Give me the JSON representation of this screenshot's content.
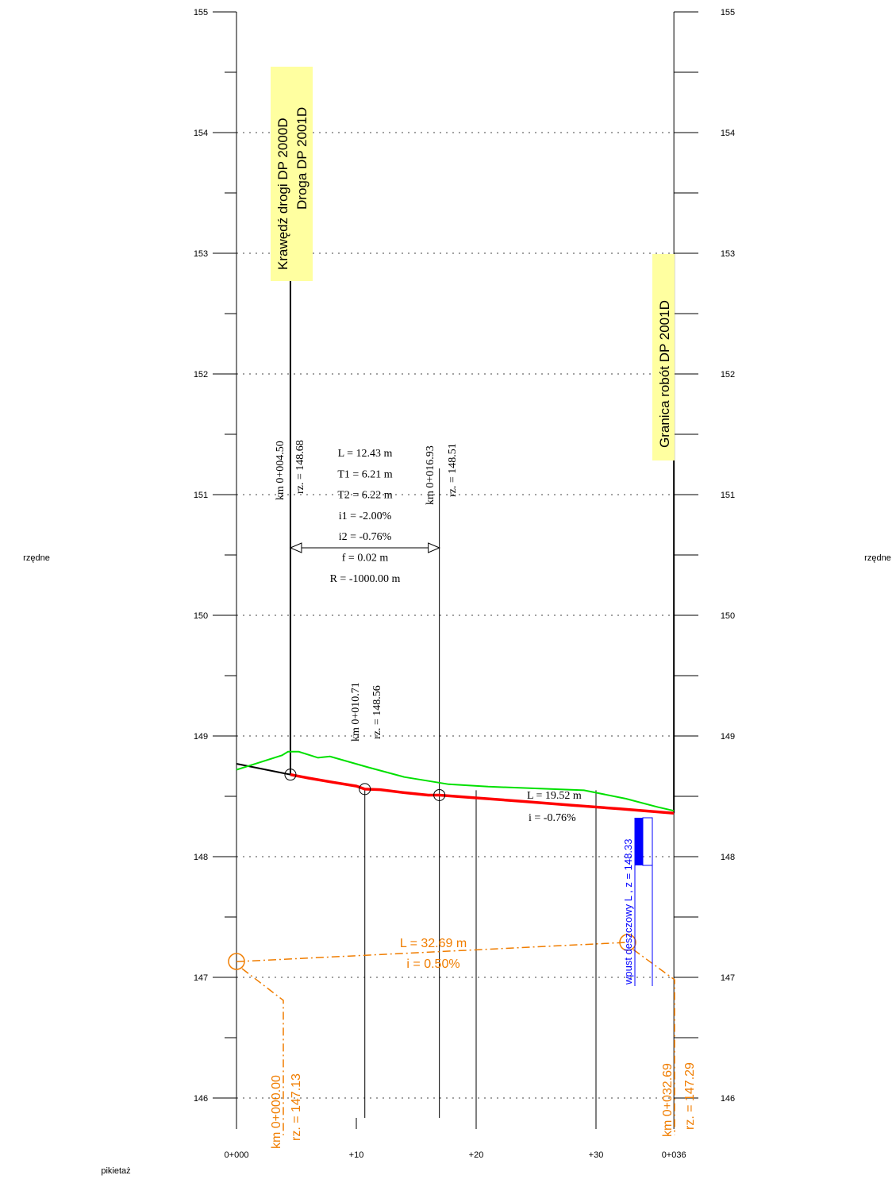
{
  "axis": {
    "side_label": "rzędne",
    "bottom_label": "pikietaż",
    "y_ticks": [
      "146",
      "147",
      "148",
      "149",
      "150",
      "151",
      "152",
      "153",
      "154",
      "155"
    ],
    "x_ticks": [
      {
        "label": "0+000",
        "x": 0
      },
      {
        "label": "+10",
        "x": 10
      },
      {
        "label": "+20",
        "x": 20
      },
      {
        "label": "+30",
        "x": 30
      },
      {
        "label": "0+036",
        "x": 36.5
      }
    ]
  },
  "markers": {
    "left_1": "Krawędź drogi DP 2000D",
    "left_2": "Droga DP 2001D",
    "right": "Granica robót DP 2001D"
  },
  "road": {
    "p1_km": "km 0+004.50",
    "p1_rz": "rz. = 148.68",
    "p2_km": "km 0+016.93",
    "p2_rz": "rz. = 148.51",
    "p3_km": "km 0+010.71",
    "p3_rz": "rz. = 148.56",
    "curve": [
      "L = 12.43 m",
      "T1 = 6.21 m",
      "T2 = 6.22 m",
      "i1 = -2.00%",
      "i2 = -0.76%",
      "f = 0.02 m",
      "R = -1000.00 m"
    ],
    "grade_L": "L = 19.52 m",
    "grade_i": "i = -0.76%"
  },
  "pipe": {
    "L": "L = 32.69 m",
    "i": "i = 0.50%",
    "start_km": "km 0+000.00",
    "start_rz": "rz. = 147.13",
    "end_km": "km 0+032.69",
    "end_rz": "rz. = 147.29"
  },
  "inlet": {
    "label": "wpust deszczowy L ,  z = 148.33"
  },
  "chart_data": {
    "type": "line",
    "xlabel": "pikietaż",
    "ylabel": "rzędne",
    "xlim": [
      0,
      36.5
    ],
    "ylim": [
      145.8,
      155.2
    ],
    "grid": true,
    "series": [
      {
        "color": "#ff0000",
        "x": [
          4.5,
          6,
          8,
          10,
          10.71,
          12,
          14,
          16,
          16.93,
          20,
          24,
          28,
          32,
          36.5
        ],
        "y": [
          148.68,
          148.651,
          148.617,
          148.585,
          148.56,
          148.555,
          148.53,
          148.51,
          148.51,
          148.487,
          148.457,
          148.426,
          148.396,
          148.36
        ]
      },
      {
        "color": "#000000",
        "x": [
          0,
          4.5
        ],
        "y": [
          148.77,
          148.68
        ]
      },
      {
        "color": "#00e000",
        "x": [
          0,
          3.8,
          4.3,
          5.2,
          6.8,
          7.8,
          11,
          14,
          17.7,
          21,
          29,
          32.5,
          35.2,
          36.5
        ],
        "y": [
          148.72,
          148.84,
          148.87,
          148.87,
          148.82,
          148.83,
          148.74,
          148.66,
          148.6,
          148.58,
          148.55,
          148.48,
          148.41,
          148.38
        ]
      },
      {
        "color": "#f07d00",
        "x": [
          0,
          32.69
        ],
        "y": [
          147.13,
          147.29
        ]
      }
    ]
  }
}
